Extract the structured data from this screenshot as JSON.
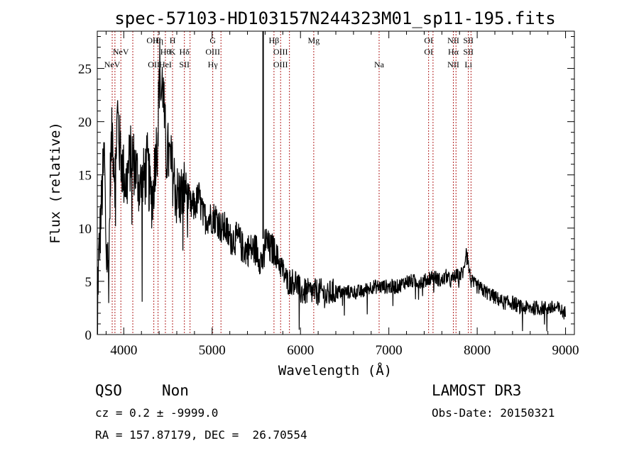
{
  "chart_data": {
    "type": "line",
    "title": "spec-57103-HD103157N244323M01_sp11-195.fits",
    "xlabel": "Wavelength (Å)",
    "ylabel": "Flux (relative)",
    "xlim": [
      3700,
      9100
    ],
    "ylim": [
      0,
      28.5
    ],
    "xticks": [
      4000,
      5000,
      6000,
      7000,
      8000,
      9000
    ],
    "yticks": [
      0,
      5,
      10,
      15,
      20,
      25
    ],
    "series": [
      {
        "name": "flux",
        "x": [
          3700,
          3740,
          3780,
          3800,
          3830,
          3850,
          3870,
          3900,
          3930,
          3950,
          3980,
          4000,
          4030,
          4060,
          4090,
          4120,
          4150,
          4180,
          4210,
          4240,
          4270,
          4300,
          4330,
          4360,
          4380,
          4400,
          4410,
          4420,
          4440,
          4460,
          4480,
          4500,
          4530,
          4560,
          4600,
          4650,
          4700,
          4750,
          4800,
          4850,
          4900,
          4950,
          5000,
          5050,
          5100,
          5150,
          5200,
          5250,
          5300,
          5350,
          5400,
          5450,
          5500,
          5550,
          5590,
          5600,
          5650,
          5700,
          5750,
          5800,
          5850,
          5900,
          5950,
          6000,
          6050,
          6100,
          6150,
          6200,
          6250,
          6300,
          6350,
          6400,
          6500,
          6600,
          6700,
          6800,
          6900,
          7000,
          7100,
          7200,
          7300,
          7400,
          7500,
          7600,
          7650,
          7700,
          7750,
          7800,
          7850,
          7880,
          7900,
          7930,
          8000,
          8100,
          8200,
          8300,
          8400,
          8500,
          8600,
          8700,
          8800,
          8900,
          9000
        ],
        "y": [
          4,
          11,
          17,
          8,
          6,
          16,
          19,
          15,
          21,
          18,
          16,
          15,
          14,
          16,
          17,
          16,
          15,
          14,
          14,
          15,
          16,
          13,
          13,
          17,
          18,
          23,
          26,
          22,
          24,
          20,
          17,
          17,
          16,
          15,
          13,
          13,
          14,
          12,
          12,
          13,
          11,
          11,
          11,
          11,
          10,
          10,
          9,
          9,
          9,
          8,
          8,
          8,
          8,
          7,
          7,
          9,
          8,
          8,
          7,
          6,
          5,
          5,
          5,
          4,
          4,
          4,
          4,
          4,
          4,
          3.5,
          4,
          4,
          4,
          4,
          4,
          4.5,
          4.5,
          4.5,
          4.5,
          5,
          5,
          5,
          5.5,
          5,
          5.5,
          5,
          5.5,
          5.5,
          6,
          8.5,
          6.5,
          5,
          4.5,
          4,
          3.5,
          3,
          3,
          2.5,
          2.5,
          2.5,
          2.5,
          2.5,
          2
        ]
      }
    ],
    "reference_line": {
      "x": 5577
    },
    "line_markers": [
      {
        "x": 3869,
        "labels": [
          "NeV"
        ],
        "rows": [
          3
        ]
      },
      {
        "x": 3900,
        "labels": [],
        "rows": []
      },
      {
        "x": 3967,
        "labels": [
          "NeV"
        ],
        "rows": [
          2
        ]
      },
      {
        "x": 4102,
        "labels": [],
        "rows": []
      },
      {
        "x": 4340,
        "labels": [
          "OIII",
          "OII"
        ],
        "rows": [
          1,
          3
        ]
      },
      {
        "x": 4388,
        "labels": [
          "Hη"
        ],
        "rows": [
          1
        ]
      },
      {
        "x": 4471,
        "labels": [
          "Hθ",
          "HeI"
        ],
        "rows": [
          2,
          3
        ]
      },
      {
        "x": 4552,
        "labels": [
          "H",
          "K"
        ],
        "rows": [
          1,
          2
        ]
      },
      {
        "x": 4686,
        "labels": [
          "Hδ",
          "SII"
        ],
        "rows": [
          2,
          3
        ]
      },
      {
        "x": 4750,
        "labels": [],
        "rows": []
      },
      {
        "x": 5007,
        "labels": [
          "G",
          "OIII",
          "Hγ"
        ],
        "rows": [
          1,
          2,
          3
        ]
      },
      {
        "x": 5100,
        "labels": [],
        "rows": []
      },
      {
        "x": 5700,
        "labels": [
          "Hβ"
        ],
        "rows": [
          1
        ]
      },
      {
        "x": 5775,
        "labels": [
          "OIII",
          "OIII"
        ],
        "rows": [
          2,
          3
        ]
      },
      {
        "x": 5875,
        "labels": [],
        "rows": []
      },
      {
        "x": 6150,
        "labels": [
          "Mg"
        ],
        "rows": [
          1
        ]
      },
      {
        "x": 6890,
        "labels": [
          "Na"
        ],
        "rows": [
          3
        ]
      },
      {
        "x": 7450,
        "labels": [
          "OI",
          "OI"
        ],
        "rows": [
          1,
          2
        ]
      },
      {
        "x": 7500,
        "labels": [],
        "rows": []
      },
      {
        "x": 7730,
        "labels": [
          "NII",
          "Hα",
          "NII"
        ],
        "rows": [
          1,
          2,
          3
        ]
      },
      {
        "x": 7760,
        "labels": [],
        "rows": []
      },
      {
        "x": 7900,
        "labels": [
          "SII",
          "SII",
          "Li"
        ],
        "rows": [
          1,
          2,
          3
        ]
      },
      {
        "x": 7930,
        "labels": [],
        "rows": []
      }
    ]
  },
  "info": {
    "class": "QSO",
    "subclass": "Non",
    "survey": "LAMOST DR3",
    "cz": "cz = 0.2 ± -9999.0",
    "obs_date": "Obs-Date: 20150321",
    "radec": "RA = 157.87179, DEC =  26.70554"
  }
}
